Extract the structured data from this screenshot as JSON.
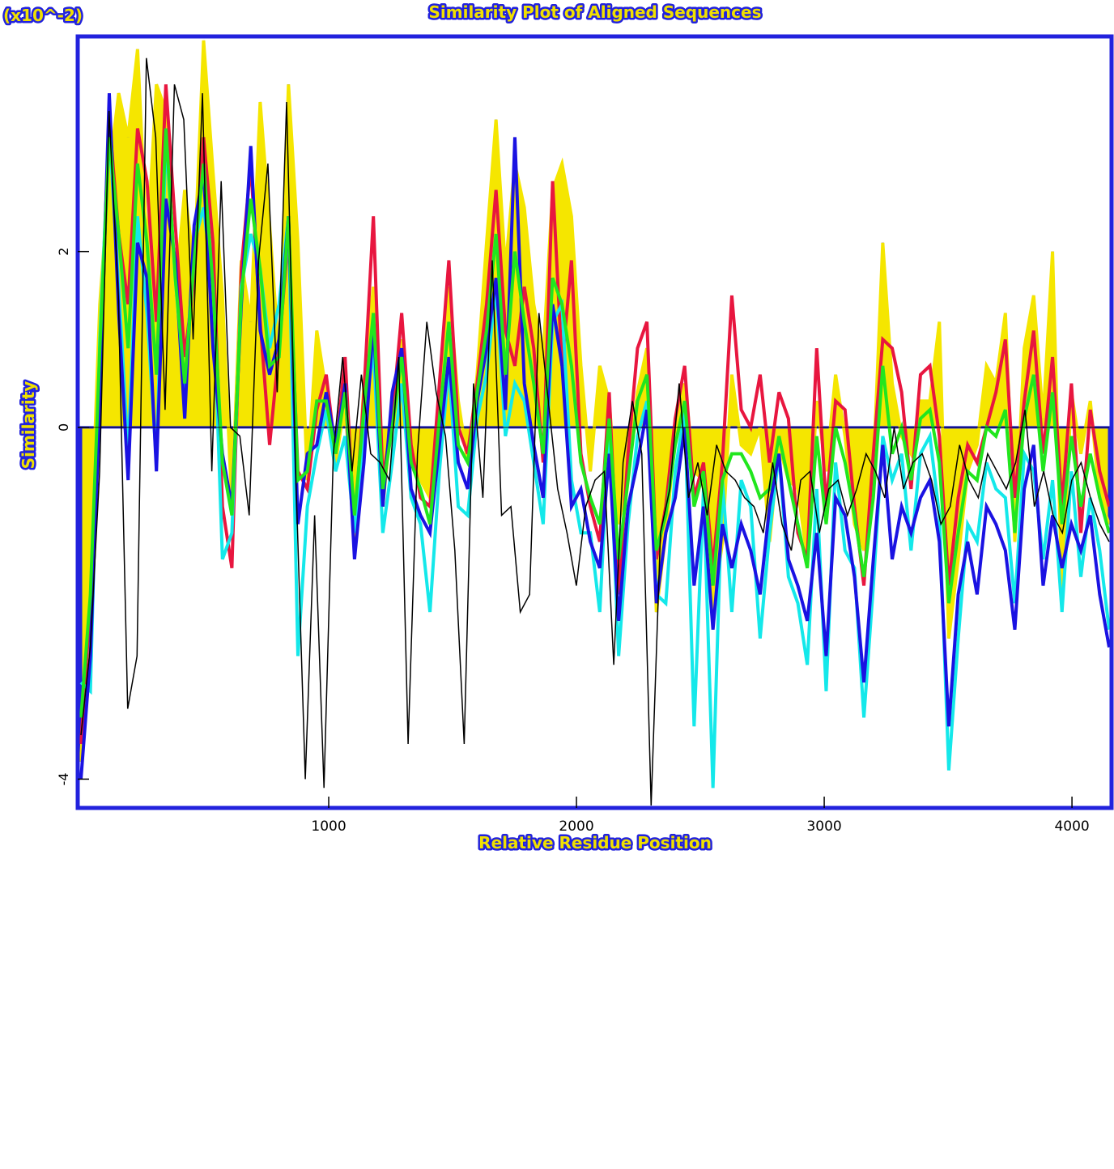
{
  "chart_data": {
    "type": "line",
    "title": "Similarity Plot of Aligned Sequences",
    "xlabel": "Relative Residue Position",
    "ylabel": "Similarity",
    "y_exponent_label": "(x10^-2)",
    "xlim": [
      0,
      4150
    ],
    "ylim": [
      -4.3,
      4.4
    ],
    "x_ticks": [
      1000,
      2000,
      3000,
      4000
    ],
    "x_tick_labels": [
      "1000",
      "2000",
      "3000",
      "4000"
    ],
    "y_ticks": [
      -4,
      0,
      2
    ],
    "y_tick_labels": [
      "-4",
      "0",
      "2"
    ],
    "grid": false,
    "legend": "none",
    "colors": {
      "frame": "#2222dd",
      "title_fill": "#f0e000",
      "series": [
        "#f5e600",
        "#e8163f",
        "#14e8ea",
        "#1a12e2",
        "#21e61e",
        "#000000"
      ]
    },
    "series": [
      {
        "color": "#f5e600",
        "fill": true,
        "values": [
          -3.8,
          -1.5,
          1.4,
          2.9,
          3.8,
          3.3,
          4.3,
          2.0,
          3.9,
          3.6,
          1.5,
          2.7,
          1.8,
          4.4,
          2.9,
          1.5,
          -0.9,
          1.9,
          1.2,
          3.7,
          2.3,
          0.8,
          3.9,
          2.1,
          -0.6,
          1.1,
          0.4,
          -0.4,
          0.3,
          -1.4,
          0.5,
          1.6,
          -0.9,
          0.2,
          1.0,
          -0.3,
          -0.6,
          -0.8,
          0.3,
          1.6,
          0.3,
          -0.4,
          0.6,
          2.1,
          3.5,
          1.8,
          3.0,
          2.5,
          1.4,
          0.8,
          2.7,
          3.0,
          2.4,
          0.7,
          -0.5,
          0.7,
          0.3,
          -1.1,
          -0.5,
          0.4,
          0.9,
          -2.1,
          -1.2,
          -0.1,
          0.5,
          -0.5,
          -0.6,
          -2.1,
          -1.3,
          0.6,
          -0.2,
          -0.3,
          0.0,
          -1.3,
          -0.2,
          -0.6,
          -0.7,
          -1.5,
          0.3,
          -0.5,
          0.6,
          -0.1,
          -1.1,
          -1.4,
          -0.5,
          2.1,
          0.5,
          -0.1,
          -0.3,
          0.3,
          0.3,
          1.2,
          -2.4,
          -1.5,
          -0.5,
          -0.2,
          0.7,
          0.5,
          1.3,
          -1.3,
          0.9,
          1.5,
          0.1,
          2.0,
          -1.9,
          0.4,
          -0.3,
          0.3,
          -0.8,
          -1.1
        ]
      },
      {
        "color": "#e8163f",
        "fill": false,
        "values": [
          -3.6,
          -2.0,
          0.8,
          3.5,
          2.2,
          1.4,
          3.4,
          2.8,
          1.2,
          3.9,
          2.3,
          0.8,
          1.7,
          3.3,
          2.1,
          -0.9,
          -1.6,
          1.8,
          3.0,
          1.2,
          -0.2,
          0.9,
          2.2,
          -0.5,
          -0.7,
          0.2,
          0.6,
          -0.3,
          0.8,
          -1.2,
          0.4,
          2.4,
          -0.6,
          0.1,
          1.3,
          -0.2,
          -0.8,
          -0.9,
          0.5,
          1.9,
          0.0,
          -0.3,
          0.5,
          1.4,
          2.7,
          1.1,
          0.7,
          1.6,
          0.9,
          -0.4,
          2.8,
          0.7,
          1.9,
          -0.3,
          -0.9,
          -1.3,
          0.4,
          -1.9,
          -0.3,
          0.9,
          1.2,
          -1.5,
          -0.9,
          0.1,
          0.7,
          -0.8,
          -0.4,
          -1.6,
          -0.4,
          1.5,
          0.2,
          0.0,
          0.6,
          -0.4,
          0.4,
          0.1,
          -1.2,
          -1.5,
          0.9,
          -0.9,
          0.3,
          0.2,
          -0.9,
          -1.8,
          -0.3,
          1.0,
          0.9,
          0.4,
          -0.7,
          0.6,
          0.7,
          -0.1,
          -1.8,
          -0.8,
          -0.2,
          -0.4,
          0.0,
          0.4,
          1.0,
          -0.8,
          0.3,
          1.1,
          -0.3,
          0.8,
          -0.9,
          0.5,
          -1.2,
          0.2,
          -0.5,
          -0.9
        ]
      },
      {
        "color": "#14e8ea",
        "fill": false,
        "values": [
          -2.9,
          -3.0,
          1.0,
          3.4,
          1.6,
          -0.3,
          2.4,
          1.3,
          -0.4,
          3.3,
          1.7,
          0.4,
          2.1,
          2.5,
          1.6,
          -1.5,
          -1.2,
          1.6,
          2.2,
          1.8,
          0.9,
          1.4,
          2.4,
          -2.6,
          -0.9,
          -0.3,
          0.2,
          -0.5,
          -0.1,
          -1.2,
          0.0,
          0.9,
          -1.2,
          -0.4,
          0.5,
          -0.8,
          -1.1,
          -2.1,
          -0.5,
          0.7,
          -0.9,
          -1.0,
          0.1,
          0.6,
          1.6,
          -0.1,
          0.5,
          0.3,
          -0.4,
          -1.1,
          1.2,
          1.4,
          -0.6,
          -1.2,
          -1.2,
          -2.1,
          0.0,
          -2.6,
          -1.1,
          -0.1,
          0.3,
          -1.9,
          -2.0,
          -0.5,
          0.2,
          -3.4,
          -0.7,
          -4.1,
          -0.6,
          -2.1,
          -0.6,
          -0.9,
          -2.4,
          -1.2,
          -0.3,
          -1.7,
          -2.0,
          -2.7,
          -0.7,
          -3.0,
          -0.4,
          -1.4,
          -1.6,
          -3.3,
          -1.8,
          -0.1,
          -0.6,
          -0.3,
          -1.4,
          -0.3,
          -0.1,
          -1.0,
          -3.9,
          -2.4,
          -1.1,
          -1.3,
          -0.4,
          -0.7,
          -0.8,
          -2.0,
          -0.3,
          -0.5,
          -1.5,
          -0.6,
          -2.1,
          -0.5,
          -1.7,
          -0.8,
          -1.4,
          -2.3
        ]
      },
      {
        "color": "#1a12e2",
        "fill": false,
        "values": [
          -4.0,
          -2.6,
          0.3,
          3.8,
          1.3,
          -0.6,
          2.1,
          1.7,
          -0.5,
          2.6,
          1.9,
          0.1,
          2.3,
          2.9,
          0.9,
          -0.3,
          -0.9,
          1.4,
          3.2,
          1.1,
          0.6,
          1.0,
          2.4,
          -1.1,
          -0.3,
          -0.2,
          0.4,
          -0.2,
          0.5,
          -1.5,
          -0.4,
          1.2,
          -0.9,
          0.4,
          0.9,
          -0.7,
          -1.0,
          -1.2,
          -0.2,
          0.8,
          -0.4,
          -0.7,
          0.3,
          0.9,
          1.7,
          0.2,
          3.3,
          0.5,
          -0.2,
          -0.8,
          1.4,
          0.7,
          -0.9,
          -0.7,
          -1.3,
          -1.6,
          -0.3,
          -2.2,
          -0.9,
          -0.4,
          0.2,
          -2.0,
          -1.2,
          -0.8,
          0.0,
          -1.8,
          -0.9,
          -2.3,
          -1.1,
          -1.6,
          -1.1,
          -1.4,
          -1.9,
          -0.9,
          -0.3,
          -1.5,
          -1.8,
          -2.2,
          -1.2,
          -2.6,
          -0.8,
          -1.0,
          -1.7,
          -2.9,
          -1.5,
          -0.2,
          -1.5,
          -0.9,
          -1.2,
          -0.8,
          -0.6,
          -1.3,
          -3.4,
          -1.9,
          -1.3,
          -1.9,
          -0.9,
          -1.1,
          -1.4,
          -2.3,
          -0.7,
          -0.2,
          -1.8,
          -1.0,
          -1.6,
          -1.1,
          -1.4,
          -1.0,
          -1.9,
          -2.5
        ]
      },
      {
        "color": "#21e61e",
        "fill": false,
        "values": [
          -3.3,
          -1.9,
          0.9,
          3.3,
          2.2,
          0.9,
          3.0,
          2.1,
          0.6,
          3.4,
          1.7,
          0.5,
          1.9,
          3.0,
          1.6,
          -0.4,
          -1.0,
          1.5,
          2.6,
          1.8,
          0.7,
          0.8,
          2.4,
          -0.6,
          -0.5,
          0.3,
          0.3,
          -0.3,
          0.4,
          -1.0,
          0.2,
          1.3,
          -0.7,
          0.0,
          0.8,
          -0.4,
          -0.7,
          -1.1,
          0.1,
          1.2,
          -0.2,
          -0.4,
          0.4,
          1.1,
          2.2,
          0.6,
          2.0,
          1.2,
          0.5,
          -0.3,
          1.7,
          1.4,
          0.7,
          -0.4,
          -0.8,
          -1.1,
          0.1,
          -1.5,
          -0.6,
          0.3,
          0.6,
          -1.4,
          -1.0,
          -0.2,
          0.3,
          -0.9,
          -0.5,
          -1.8,
          -0.6,
          -0.3,
          -0.3,
          -0.5,
          -0.8,
          -0.7,
          -0.1,
          -0.6,
          -1.1,
          -1.6,
          -0.1,
          -1.1,
          0.0,
          -0.4,
          -1.0,
          -1.7,
          -0.8,
          0.7,
          -0.3,
          0.0,
          -0.6,
          0.1,
          0.2,
          -0.4,
          -2.0,
          -1.2,
          -0.5,
          -0.6,
          0.0,
          -0.1,
          0.2,
          -1.2,
          0.1,
          0.6,
          -0.5,
          0.4,
          -1.1,
          -0.1,
          -0.9,
          -0.3,
          -0.8,
          -1.2
        ]
      },
      {
        "color": "#000000",
        "fill": false,
        "values": [
          -3.5,
          -2.5,
          -0.5,
          3.6,
          1.5,
          -3.2,
          -2.6,
          4.2,
          3.3,
          0.2,
          3.9,
          3.5,
          1.0,
          3.8,
          -0.5,
          2.8,
          0.0,
          -0.1,
          -1.0,
          1.9,
          3.0,
          0.4,
          3.7,
          -0.6,
          -4.0,
          -1.0,
          -4.1,
          -0.3,
          0.8,
          -0.5,
          0.6,
          -0.3,
          -0.4,
          -0.6,
          0.8,
          -3.6,
          -0.3,
          1.2,
          0.4,
          -0.1,
          -1.4,
          -3.6,
          0.5,
          -0.8,
          1.9,
          -1.0,
          -0.9,
          -2.1,
          -1.9,
          1.3,
          0.3,
          -0.7,
          -1.2,
          -1.8,
          -0.9,
          -0.6,
          -0.5,
          -2.7,
          -0.4,
          0.3,
          -0.3,
          -4.3,
          -1.2,
          -0.7,
          0.5,
          -0.8,
          -0.4,
          -1.0,
          -0.2,
          -0.5,
          -0.6,
          -0.8,
          -0.9,
          -1.2,
          -0.4,
          -1.1,
          -1.4,
          -0.6,
          -0.5,
          -1.2,
          -0.7,
          -0.6,
          -1.0,
          -0.7,
          -0.3,
          -0.5,
          -0.8,
          0.0,
          -0.7,
          -0.4,
          -0.3,
          -0.6,
          -1.1,
          -0.9,
          -0.2,
          -0.6,
          -0.8,
          -0.3,
          -0.5,
          -0.7,
          -0.4,
          0.2,
          -0.9,
          -0.5,
          -1.0,
          -1.2,
          -0.6,
          -0.4,
          -0.8,
          -1.1,
          -1.3
        ]
      }
    ]
  }
}
